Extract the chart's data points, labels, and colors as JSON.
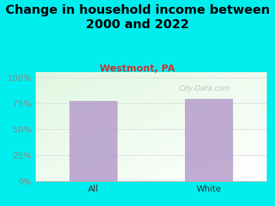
{
  "title": "Change in household income between\n2000 and 2022",
  "subtitle": "Westmont, PA",
  "categories": [
    "All",
    "White"
  ],
  "values": [
    77.0,
    79.0
  ],
  "bar_color": "#b8a0cc",
  "background_color": "#00EEEE",
  "title_fontsize": 13,
  "subtitle_fontsize": 10,
  "tick_label_color": "#888888",
  "subtitle_color": "#cc3333",
  "yticks": [
    0,
    25,
    50,
    75,
    100
  ],
  "ytick_labels": [
    "0%",
    "25%",
    "50%",
    "75%",
    "100%"
  ],
  "ylim": [
    0,
    105
  ],
  "watermark": "City-Data.com",
  "grid_color": "#dddddd"
}
